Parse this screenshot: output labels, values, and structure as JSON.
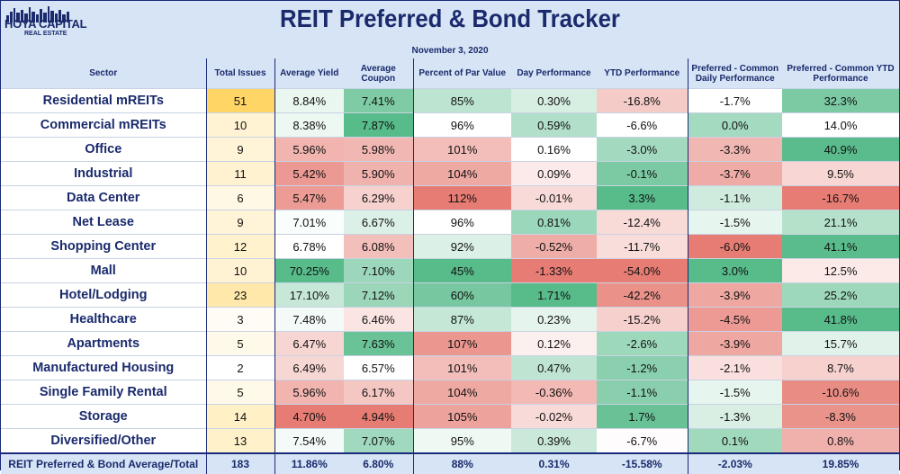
{
  "title": "REIT Preferred & Bond Tracker",
  "date": "November 3, 2020",
  "logo": {
    "name": "HOYA CAPITAL",
    "sub": "REAL ESTATE"
  },
  "chart_data": {
    "type": "table",
    "columns": [
      "Sector",
      "Total Issues",
      "Average Yield",
      "Average Coupon",
      "Percent of Par Value",
      "Day Performance",
      "YTD Performance",
      "Preferred - Common Daily Performance",
      "Preferred - Common YTD Performance"
    ],
    "rows": [
      [
        "Residential mREITs",
        "51",
        "8.84%",
        "7.41%",
        "85%",
        "0.30%",
        "-16.8%",
        "-1.7%",
        "32.3%"
      ],
      [
        "Commercial mREITs",
        "10",
        "8.38%",
        "7.87%",
        "96%",
        "0.59%",
        "-6.6%",
        "0.0%",
        "14.0%"
      ],
      [
        "Office",
        "9",
        "5.96%",
        "5.98%",
        "101%",
        "0.16%",
        "-3.0%",
        "-3.3%",
        "40.9%"
      ],
      [
        "Industrial",
        "11",
        "5.42%",
        "5.90%",
        "104%",
        "0.09%",
        "-0.1%",
        "-3.7%",
        "9.5%"
      ],
      [
        "Data Center",
        "6",
        "5.47%",
        "6.29%",
        "112%",
        "-0.01%",
        "3.3%",
        "-1.1%",
        "-16.7%"
      ],
      [
        "Net Lease",
        "9",
        "7.01%",
        "6.67%",
        "96%",
        "0.81%",
        "-12.4%",
        "-1.5%",
        "21.1%"
      ],
      [
        "Shopping Center",
        "12",
        "6.78%",
        "6.08%",
        "92%",
        "-0.52%",
        "-11.7%",
        "-6.0%",
        "41.1%"
      ],
      [
        "Mall",
        "10",
        "70.25%",
        "7.10%",
        "45%",
        "-1.33%",
        "-54.0%",
        "3.0%",
        "12.5%"
      ],
      [
        "Hotel/Lodging",
        "23",
        "17.10%",
        "7.12%",
        "60%",
        "1.71%",
        "-42.2%",
        "-3.9%",
        "25.2%"
      ],
      [
        "Healthcare",
        "3",
        "7.48%",
        "6.46%",
        "87%",
        "0.23%",
        "-15.2%",
        "-4.5%",
        "41.8%"
      ],
      [
        "Apartments",
        "5",
        "6.47%",
        "7.63%",
        "107%",
        "0.12%",
        "-2.6%",
        "-3.9%",
        "15.7%"
      ],
      [
        "Manufactured Housing",
        "2",
        "6.49%",
        "6.57%",
        "101%",
        "0.47%",
        "-1.2%",
        "-2.1%",
        "8.7%"
      ],
      [
        "Single Family Rental",
        "5",
        "5.96%",
        "6.17%",
        "104%",
        "-0.36%",
        "-1.1%",
        "-1.5%",
        "-10.6%"
      ],
      [
        "Storage",
        "14",
        "4.70%",
        "4.94%",
        "105%",
        "-0.02%",
        "1.7%",
        "-1.3%",
        "-8.3%"
      ],
      [
        "Diversified/Other",
        "13",
        "7.54%",
        "7.07%",
        "95%",
        "0.39%",
        "-6.7%",
        "0.1%",
        "0.8%"
      ]
    ],
    "total": [
      "REIT Preferred & Bond Average/Total",
      "183",
      "11.86%",
      "6.80%",
      "88%",
      "0.31%",
      "-15.58%",
      "-2.03%",
      "19.85%"
    ],
    "colors": {
      "header_bg": "#d6e4f5",
      "text": "#1a2a6c",
      "green": "#57bb8a",
      "red": "#e67c73",
      "yellow": "#ffd666",
      "white": "#ffffff"
    }
  }
}
